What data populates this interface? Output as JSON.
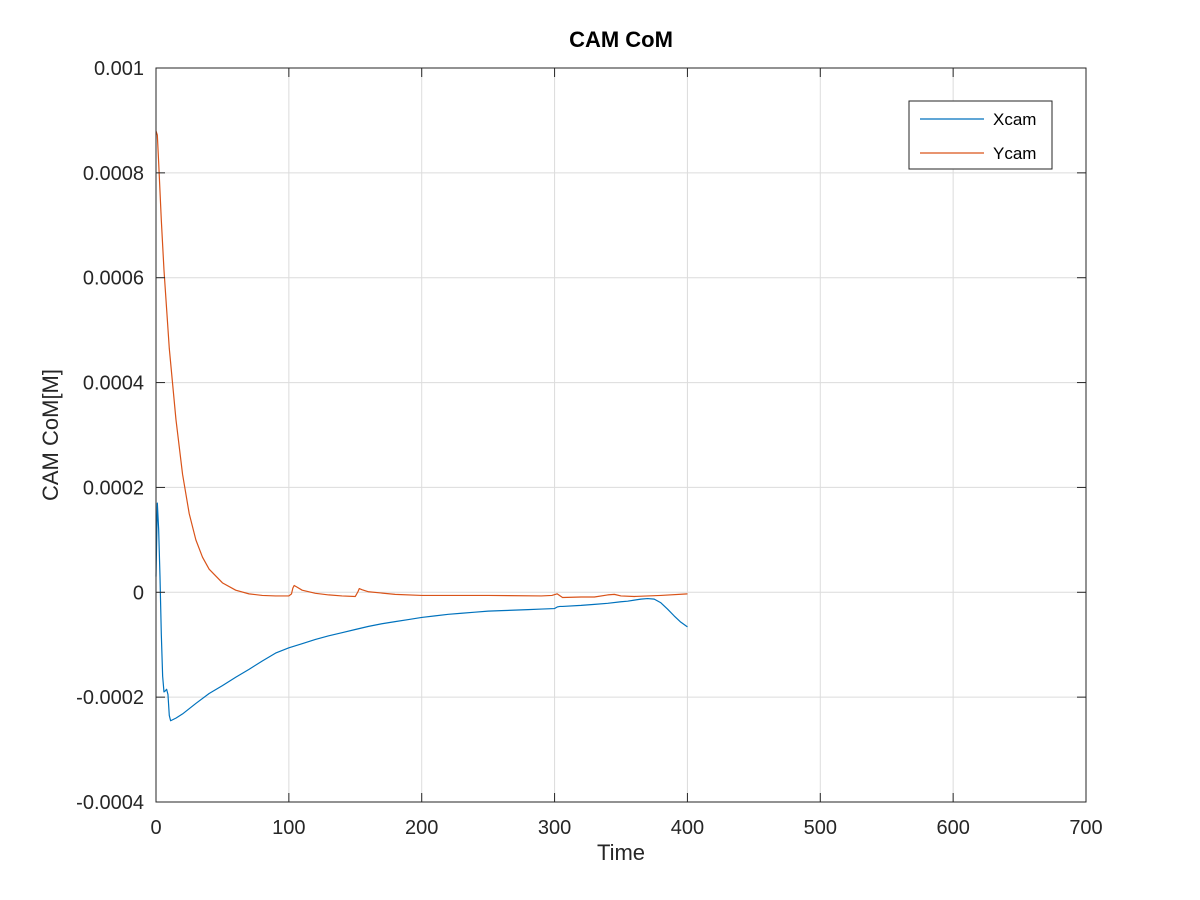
{
  "chart_data": {
    "type": "line",
    "title": "CAM CoM",
    "xlabel": "Time",
    "ylabel": "CAM CoM[M]",
    "xlim": [
      0,
      700
    ],
    "ylim": [
      -0.0004,
      0.001
    ],
    "xticks": [
      0,
      100,
      200,
      300,
      400,
      500,
      600,
      700
    ],
    "xtick_labels": [
      "0",
      "100",
      "200",
      "300",
      "400",
      "500",
      "600",
      "700"
    ],
    "yticks": [
      -0.0004,
      -0.0002,
      0,
      0.0002,
      0.0004,
      0.0006,
      0.0008,
      0.001
    ],
    "ytick_labels": [
      "-0.0004",
      "-0.0002",
      "0",
      "0.0002",
      "0.0004",
      "0.0006",
      "0.0008",
      "0.001"
    ],
    "grid": true,
    "legend_position": "top-right",
    "series": [
      {
        "name": "Xcam",
        "color": "#0072BD",
        "x": [
          0,
          1,
          2,
          3,
          4,
          5,
          6,
          7,
          8,
          9,
          10,
          11,
          15,
          20,
          30,
          40,
          50,
          60,
          70,
          80,
          90,
          100,
          110,
          120,
          130,
          140,
          150,
          160,
          170,
          180,
          190,
          200,
          210,
          220,
          230,
          240,
          250,
          260,
          270,
          280,
          290,
          300,
          302,
          304,
          306,
          320,
          330,
          340,
          350,
          355,
          360,
          365,
          370,
          375,
          380,
          385,
          390,
          395,
          400
        ],
        "y": [
          3e-05,
          0.00017,
          0.00012,
          3e-05,
          -8e-05,
          -0.00016,
          -0.00019,
          -0.000188,
          -0.000185,
          -0.000195,
          -0.000235,
          -0.000245,
          -0.00024,
          -0.000232,
          -0.000212,
          -0.000193,
          -0.000178,
          -0.000162,
          -0.000147,
          -0.000131,
          -0.000116,
          -0.000106,
          -9.8e-05,
          -9e-05,
          -8.3e-05,
          -7.7e-05,
          -7.1e-05,
          -6.5e-05,
          -6e-05,
          -5.6e-05,
          -5.2e-05,
          -4.8e-05,
          -4.5e-05,
          -4.2e-05,
          -4e-05,
          -3.8e-05,
          -3.6e-05,
          -3.5e-05,
          -3.4e-05,
          -3.3e-05,
          -3.2e-05,
          -3.1e-05,
          -2.8e-05,
          -2.7e-05,
          -2.7e-05,
          -2.5e-05,
          -2.3e-05,
          -2.1e-05,
          -1.8e-05,
          -1.7e-05,
          -1.5e-05,
          -1.3e-05,
          -1.2e-05,
          -1.3e-05,
          -2e-05,
          -3.2e-05,
          -4.5e-05,
          -5.7e-05,
          -6.6e-05
        ]
      },
      {
        "name": "Ycam",
        "color": "#D95319",
        "x": [
          0,
          1,
          2,
          4,
          6,
          8,
          10,
          15,
          20,
          25,
          30,
          35,
          40,
          50,
          60,
          70,
          80,
          90,
          100,
          102,
          103,
          104,
          106,
          110,
          120,
          130,
          140,
          150,
          152,
          153,
          155,
          160,
          180,
          200,
          250,
          290,
          298,
          302,
          306,
          320,
          330,
          340,
          345,
          350,
          360,
          380,
          400
        ],
        "y": [
          0.00088,
          0.000872,
          0.00082,
          0.00071,
          0.000615,
          0.00054,
          0.000465,
          0.00033,
          0.000225,
          0.00015,
          0.0001,
          6.7e-05,
          4.4e-05,
          1.8e-05,
          4e-06,
          -3e-06,
          -6e-06,
          -7e-06,
          -7e-06,
          -3e-06,
          8e-06,
          1.3e-05,
          1e-05,
          4e-06,
          -2e-06,
          -5e-06,
          -7e-06,
          -8e-06,
          1e-06,
          7e-06,
          5e-06,
          1e-06,
          -4e-06,
          -6e-06,
          -6e-06,
          -7e-06,
          -6e-06,
          -3e-06,
          -1e-05,
          -9e-06,
          -9e-06,
          -5e-06,
          -4e-06,
          -7e-06,
          -8e-06,
          -6e-06,
          -3e-06
        ]
      }
    ]
  }
}
